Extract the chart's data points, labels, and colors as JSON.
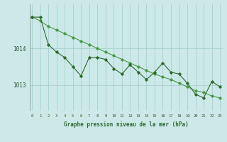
{
  "x": [
    0,
    1,
    2,
    3,
    4,
    5,
    6,
    7,
    8,
    9,
    10,
    11,
    12,
    13,
    14,
    15,
    16,
    17,
    18,
    19,
    20,
    21,
    22,
    23
  ],
  "y_main": [
    1014.85,
    1014.85,
    1014.1,
    1013.9,
    1013.75,
    1013.5,
    1013.25,
    1013.75,
    1013.75,
    1013.7,
    1013.45,
    1013.3,
    1013.55,
    1013.35,
    1013.15,
    1013.35,
    1013.6,
    1013.35,
    1013.3,
    1013.05,
    1012.75,
    1012.65,
    1013.1,
    1012.95
  ],
  "y_smooth": [
    1014.85,
    1014.75,
    1014.6,
    1014.5,
    1014.4,
    1014.3,
    1014.2,
    1014.1,
    1014.0,
    1013.9,
    1013.8,
    1013.7,
    1013.6,
    1013.5,
    1013.4,
    1013.3,
    1013.22,
    1013.15,
    1013.05,
    1012.95,
    1012.85,
    1012.8,
    1012.7,
    1012.65
  ],
  "line_color": "#2d6a2d",
  "smooth_color": "#4a9a4a",
  "bg_color": "#cce8e8",
  "grid_color": "#a0cccc",
  "xlabel": "Graphe pression niveau de la mer (hPa)",
  "ylabel_ticks": [
    1013,
    1014
  ],
  "ylim": [
    1012.3,
    1015.2
  ],
  "xlim": [
    -0.3,
    23.3
  ],
  "title": ""
}
